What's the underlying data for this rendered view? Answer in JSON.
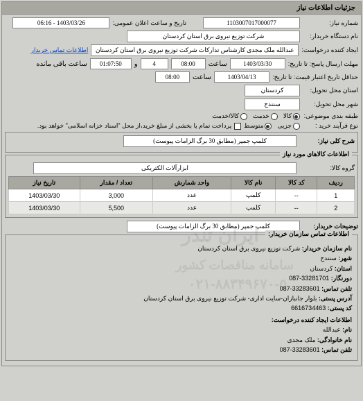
{
  "main_panel_title": "جزئیات اطلاعات نیاز",
  "number_label": "شماره نیاز:",
  "number_value": "1103007017000077",
  "datetime_label": "تاریخ و ساعت اعلان عمومی:",
  "datetime_value": "1403/03/26 - 06:16",
  "buyer_org_label": "نام دستگاه خریدار:",
  "buyer_org_value": "شرکت توزیع نیروی برق استان کردستان",
  "requester_label": "ایجاد کننده درخواست:",
  "requester_value": "عبدالله ملک مجدی کارشناس تدارکات شرکت توزیع نیروی برق استان کردستان",
  "contact_link": "اطلاعات تماس خریدار",
  "deadline_date_label": "مهلت ارسال پاسخ: تا تاریخ:",
  "deadline_date_value": "1403/03/30",
  "time_label": "ساعت",
  "deadline_time_value": "08:00",
  "and_label": "و",
  "days_value": "4",
  "remaining_time_value": "01:07:50",
  "remaining_label": "ساعت باقی مانده",
  "validity_label": "حداقل تاریخ اعتبار قیمت: تا تاریخ:",
  "validity_date_value": "1403/04/13",
  "validity_time_value": "08:00",
  "province_label": "استان محل تحویل:",
  "province_value": "کردستان",
  "city_label": "شهر محل تحویل:",
  "city_value": "سنندج",
  "category_label": "طبقه بندی موضوعی:",
  "category_goods": "کالا",
  "category_service": "خدمت",
  "category_both": "کالا/خدمت",
  "process_label": "نوع فرآیند خرید :",
  "process_small": "جزیی",
  "process_medium": "متوسط",
  "process_note": "پرداخت تمام یا بخشی از مبلغ خرید،از محل \"اسناد خزانه اسلامی\" خواهد بود.",
  "desc_label": "شرح کلی نیاز:",
  "desc_value": "کلمپ جمپر (مطابق 30 برگ الزامات پیوست)",
  "items_title": "اطلاعات کالاهای مورد نیاز",
  "group_label": "گروه کالا:",
  "group_value": "ابزارآلات الکتریکی",
  "table": {
    "columns": [
      "ردیف",
      "کد کالا",
      "نام کالا",
      "واحد شمارش",
      "تعداد / مقدار",
      "تاریخ نیاز"
    ],
    "rows": [
      [
        "1",
        "--",
        "کلمپ",
        "عدد",
        "3,000",
        "1403/03/30"
      ],
      [
        "2",
        "--",
        "کلمپ",
        "عدد",
        "5,500",
        "1403/03/30"
      ]
    ]
  },
  "buyer_desc_label": "توضیحات خریدار:",
  "buyer_desc_value": "کلمپ جمپر (مطابق 30 برگ الزامات پیوست)",
  "contact_title": "اطلاعات تماس سازمان خریدار:",
  "org_name_label": "نام سازمان خریدار:",
  "org_name_value": "شرکت توزیع نیروی برق استان کردستان",
  "contact_city_label": "شهر:",
  "contact_city_value": "سنندج",
  "contact_province_label": "استان:",
  "contact_province_value": "کردستان",
  "fax_label": "دورنگار:",
  "fax_value": "33281701-087",
  "phone_label": "تلفن تماس:",
  "phone_value": "33283601-087",
  "address_label": "آدرس پستی:",
  "address_value": "بلوار جانبازان-سایت اداری- شرکت توزیع نیروی برق استان کردستان",
  "postal_label": "کد پستی:",
  "postal_value": "6616734463",
  "creator_title": "اطلاعات ایجاد کننده درخواست:",
  "creator_name_label": "نام:",
  "creator_name_value": "عبدالله",
  "creator_family_label": "نام خانوادگی:",
  "creator_family_value": "ملک مجدی",
  "creator_phone_label": "تلفن تماس:",
  "creator_phone_value": "33283601-087",
  "watermark1": "ایران تندر",
  "watermark2": "سامانه مناقصات کشور",
  "watermark3": "۰۲۱-۸۸۳۴۹۶۷۰-۵",
  "colors": {
    "panel_bg": "#d0d0cc",
    "header_bg": "#a8a8a0",
    "border": "#888888",
    "input_bg": "#ffffff",
    "link": "#0044cc"
  }
}
